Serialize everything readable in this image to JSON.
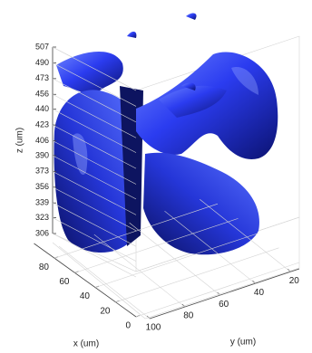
{
  "chart_data": {
    "type": "isosurface3d",
    "xlabel": "x (um)",
    "ylabel": "y (um)",
    "zlabel": "z (um)",
    "xlim": [
      0,
      100
    ],
    "xticks": [
      0,
      20,
      40,
      60,
      80
    ],
    "ylim": [
      15,
      100
    ],
    "yticks": [
      20,
      40,
      60,
      80,
      100
    ],
    "zlim": [
      306,
      507
    ],
    "zticks": [
      306,
      323,
      339,
      356,
      373,
      390,
      406,
      423,
      440,
      456,
      473,
      490,
      507
    ],
    "color": "#2b3cf0",
    "grid": true
  }
}
